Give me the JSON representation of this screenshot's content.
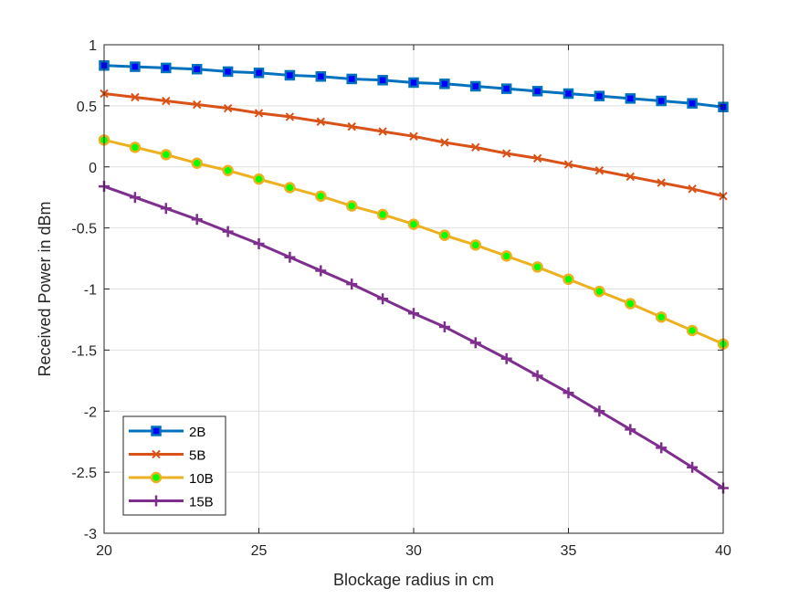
{
  "chart_data": {
    "type": "line",
    "xlabel": "Blockage radius in cm",
    "ylabel": "Received Power in dBm",
    "xlim": [
      20,
      40
    ],
    "ylim": [
      -3,
      1
    ],
    "xticks": [
      20,
      25,
      30,
      35,
      40
    ],
    "yticks": [
      1,
      0.5,
      0,
      -0.5,
      -1,
      -1.5,
      -2,
      -2.5,
      -3
    ],
    "xtick_labels": [
      "20",
      "25",
      "30",
      "35",
      "40"
    ],
    "ytick_labels": [
      "1",
      "0.5",
      "0",
      "-0.5",
      "-1",
      "-1.5",
      "-2",
      "-2.5",
      "-3"
    ],
    "grid": true,
    "legend_position": "bottom-left",
    "x": [
      20,
      21,
      22,
      23,
      24,
      25,
      26,
      27,
      28,
      29,
      30,
      31,
      32,
      33,
      34,
      35,
      36,
      37,
      38,
      39,
      40
    ],
    "series": [
      {
        "name": "2B",
        "color": "#0072BD",
        "marker": "square",
        "marker_face": "#0000FF",
        "values": [
          0.83,
          0.82,
          0.81,
          0.8,
          0.78,
          0.77,
          0.75,
          0.74,
          0.72,
          0.71,
          0.69,
          0.68,
          0.66,
          0.64,
          0.62,
          0.6,
          0.58,
          0.56,
          0.54,
          0.52,
          0.49
        ]
      },
      {
        "name": "5B",
        "color": "#D95319",
        "marker": "x",
        "marker_face": "#D95319",
        "values": [
          0.6,
          0.57,
          0.54,
          0.51,
          0.48,
          0.44,
          0.41,
          0.37,
          0.33,
          0.29,
          0.25,
          0.2,
          0.16,
          0.11,
          0.07,
          0.02,
          -0.03,
          -0.08,
          -0.13,
          -0.18,
          -0.24
        ]
      },
      {
        "name": "10B",
        "color": "#EDB120",
        "marker": "circle",
        "marker_face": "#00FF00",
        "values": [
          0.22,
          0.16,
          0.1,
          0.03,
          -0.03,
          -0.1,
          -0.17,
          -0.24,
          -0.32,
          -0.39,
          -0.47,
          -0.56,
          -0.64,
          -0.73,
          -0.82,
          -0.92,
          -1.02,
          -1.12,
          -1.23,
          -1.34,
          -1.45
        ]
      },
      {
        "name": "15B",
        "color": "#7E2F8E",
        "marker": "plus",
        "marker_face": "#7E2F8E",
        "values": [
          -0.16,
          -0.25,
          -0.34,
          -0.43,
          -0.53,
          -0.63,
          -0.74,
          -0.85,
          -0.96,
          -1.08,
          -1.2,
          -1.31,
          -1.44,
          -1.57,
          -1.71,
          -1.85,
          -2.0,
          -2.15,
          -2.3,
          -2.46,
          -2.63
        ]
      }
    ]
  }
}
